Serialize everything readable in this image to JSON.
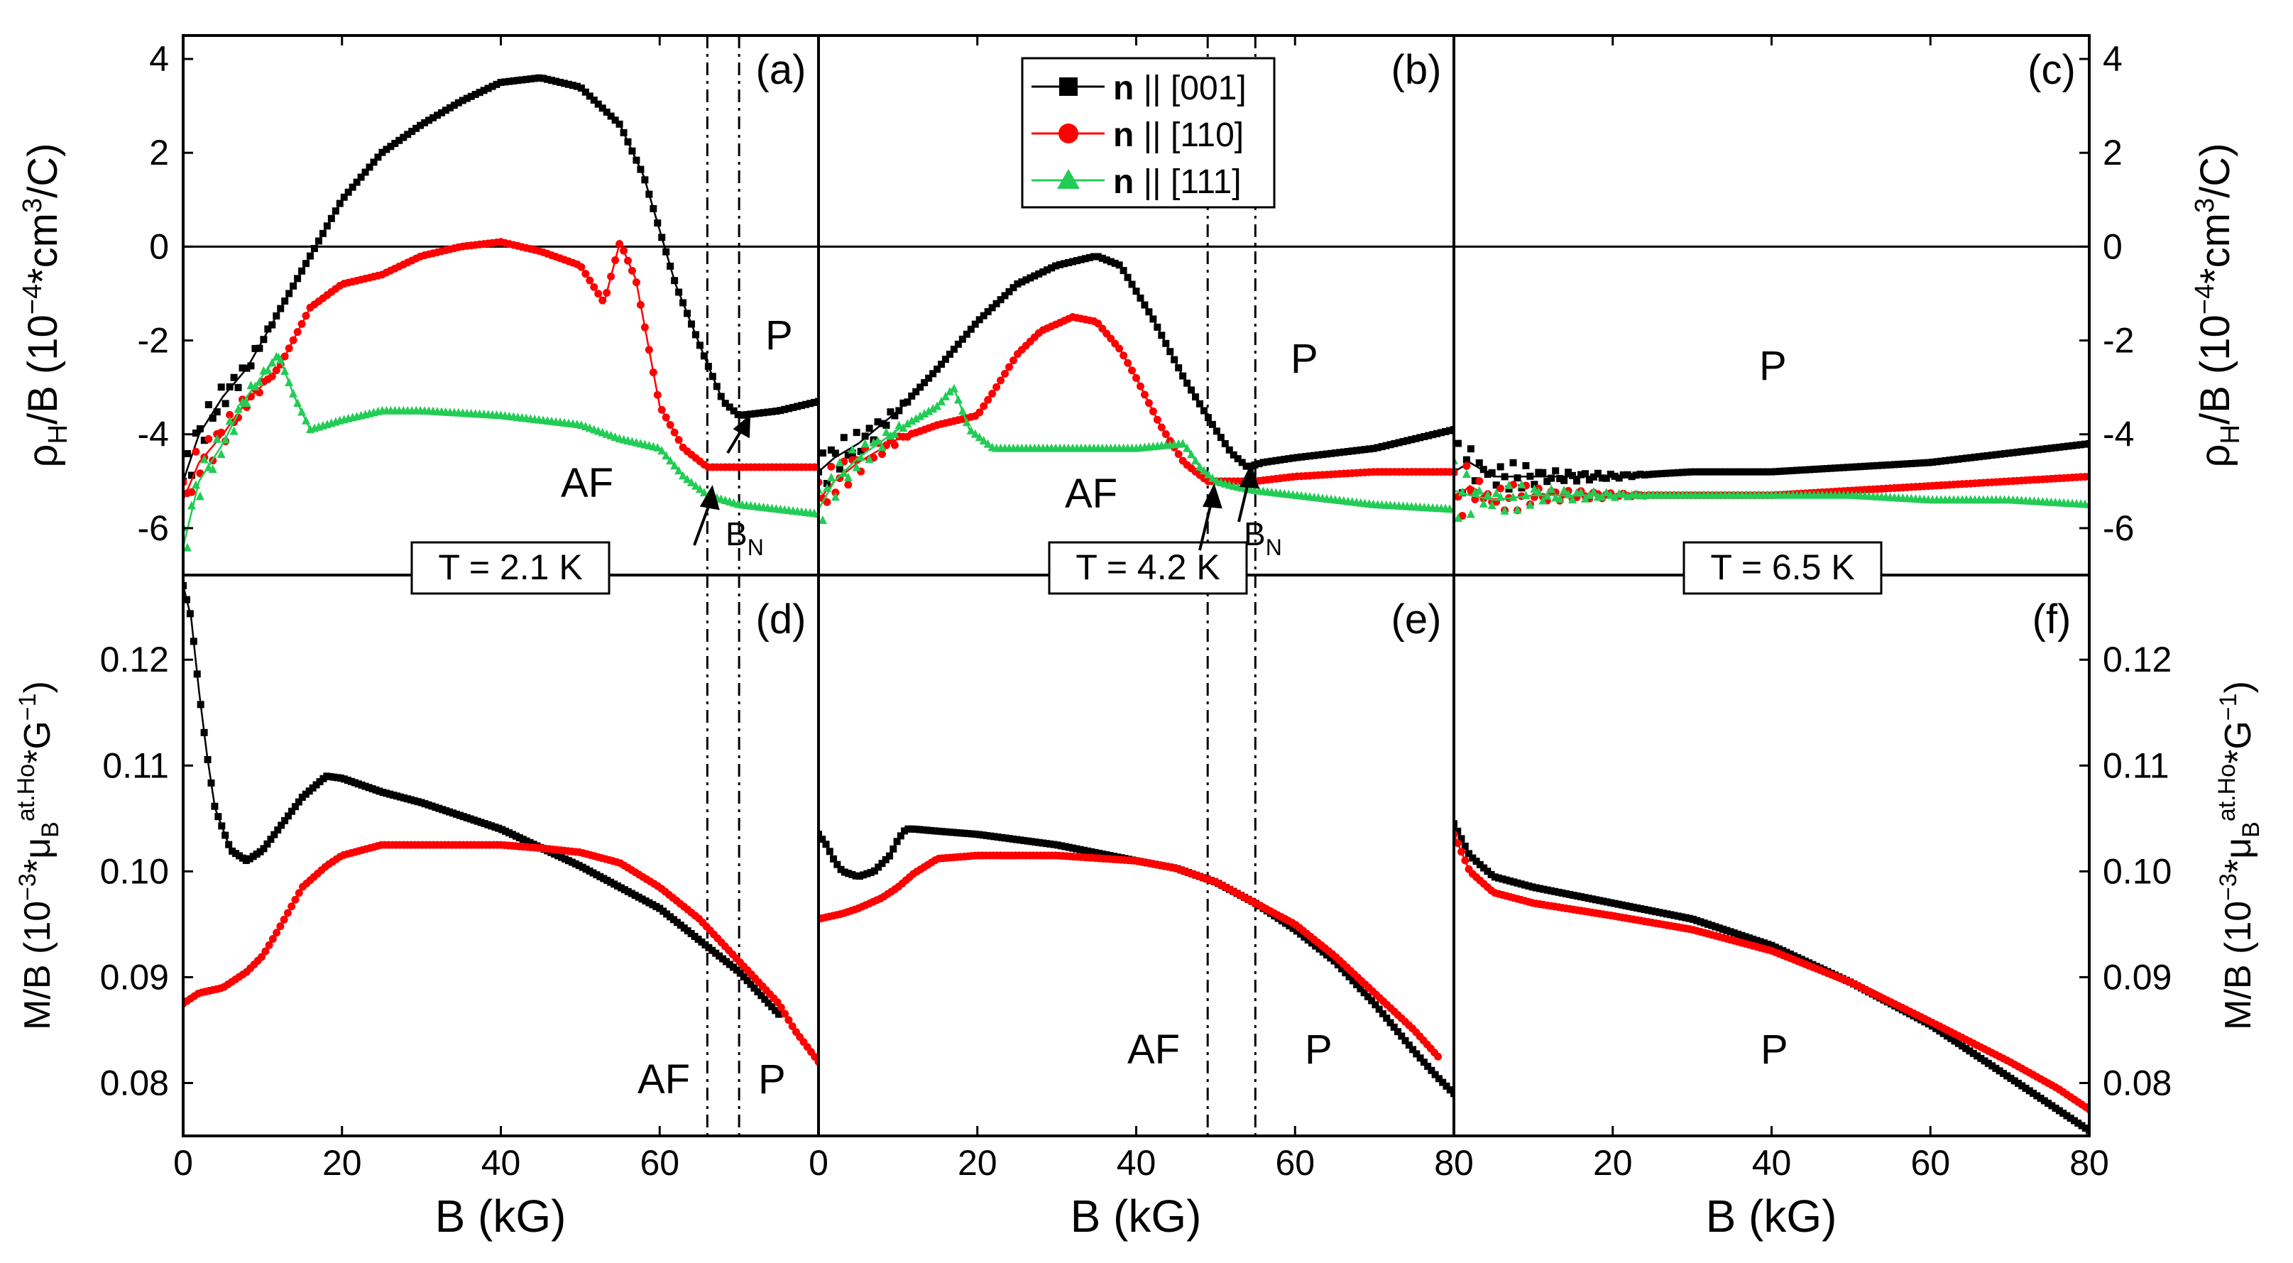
{
  "figure": {
    "panels": [
      "(a)",
      "(b)",
      "(c)",
      "(d)",
      "(e)",
      "(f)"
    ],
    "xlabel": "B (kG)",
    "top_ylabel": {
      "main": "ρ",
      "sub": "H",
      "rest": "/B (10",
      "sup": "−4",
      "tail": "*cm",
      "sup2": "3",
      "end": "/C)"
    },
    "bottom_ylabel": {
      "main": "M/B (10",
      "sup": "−3",
      "mid": "*μ",
      "sub": "B",
      "sup2": "at.Ho",
      "tail": "*G",
      "sup3": "−1",
      "end": ")"
    },
    "temperatures": [
      "T = 2.1 K",
      "T = 4.2 K",
      "T = 6.5 K"
    ],
    "region_labels": {
      "af": "AF",
      "p": "P",
      "bn": "B",
      "bn_sub": "N"
    },
    "legend": [
      {
        "bold": "n",
        "rest": " || [001]",
        "color": "#000000",
        "marker": "square"
      },
      {
        "bold": "n",
        "rest": " || [110]",
        "color": "#ff0000",
        "marker": "circle"
      },
      {
        "bold": "n",
        "rest": " || [111]",
        "color": "#22cc55",
        "marker": "triangle"
      }
    ]
  },
  "chart_data": [
    {
      "type": "line",
      "panel": "(a)",
      "title": "T = 2.1 K",
      "ylabel": "ρH/B (10^-4 cm^3/C)",
      "xlim": [
        0,
        80
      ],
      "ylim": [
        -7,
        4.5
      ],
      "yticks": [
        -6,
        -4,
        -2,
        0,
        2,
        4
      ],
      "xticks": [
        0,
        20,
        40,
        60,
        80
      ],
      "annotations": [
        "AF",
        "P",
        "BN"
      ],
      "vlines": [
        66,
        70
      ],
      "series": [
        {
          "name": "n || [001]",
          "x": [
            0,
            2,
            5,
            8,
            12,
            16,
            20,
            25,
            30,
            35,
            40,
            45,
            50,
            55,
            58,
            62,
            66,
            68,
            70,
            75,
            80
          ],
          "y": [
            -5,
            -4,
            -3.2,
            -2.6,
            -1.4,
            -0.2,
            1,
            2,
            2.6,
            3.1,
            3.5,
            3.6,
            3.4,
            2.6,
            1.5,
            -0.8,
            -2.5,
            -3.3,
            -3.6,
            -3.5,
            -3.3
          ]
        },
        {
          "name": "n || [110]",
          "x": [
            0,
            2,
            5,
            8,
            12,
            16,
            20,
            25,
            30,
            35,
            40,
            45,
            50,
            53,
            55,
            57,
            60,
            63,
            66,
            70,
            75,
            80
          ],
          "y": [
            -5.4,
            -4.6,
            -4,
            -3.3,
            -2.6,
            -1.3,
            -0.8,
            -0.6,
            -0.2,
            0,
            0.1,
            -0.1,
            -0.4,
            -1.2,
            0.1,
            -0.7,
            -3.4,
            -4.3,
            -4.7,
            -4.7,
            -4.7,
            -4.7
          ]
        },
        {
          "name": "n || [111]",
          "x": [
            0,
            2,
            5,
            8,
            12,
            14,
            16,
            20,
            25,
            30,
            40,
            50,
            55,
            60,
            63,
            66,
            70,
            75,
            80
          ],
          "y": [
            -6.4,
            -5,
            -4.2,
            -3.2,
            -2.3,
            -3.2,
            -3.9,
            -3.7,
            -3.5,
            -3.5,
            -3.6,
            -3.8,
            -4.1,
            -4.3,
            -4.9,
            -5.3,
            -5.5,
            -5.6,
            -5.7
          ]
        }
      ]
    },
    {
      "type": "line",
      "panel": "(b)",
      "title": "T = 4.2 K",
      "xlim": [
        0,
        80
      ],
      "ylim": [
        -7,
        4.5
      ],
      "annotations": [
        "AF",
        "P",
        "BN"
      ],
      "vlines": [
        49,
        55
      ],
      "series": [
        {
          "name": "n || [001]",
          "x": [
            0,
            2,
            5,
            10,
            15,
            20,
            25,
            30,
            35,
            38,
            42,
            46,
            50,
            52,
            54,
            56,
            60,
            70,
            80
          ],
          "y": [
            -4.8,
            -4.5,
            -4.2,
            -3.5,
            -2.6,
            -1.6,
            -0.8,
            -0.4,
            -0.2,
            -0.4,
            -1.5,
            -2.8,
            -3.9,
            -4.4,
            -4.7,
            -4.6,
            -4.5,
            -4.3,
            -3.9
          ]
        },
        {
          "name": "n || [110]",
          "x": [
            0,
            2,
            5,
            10,
            15,
            20,
            22,
            25,
            28,
            32,
            35,
            38,
            40,
            43,
            46,
            49,
            52,
            55,
            60,
            70,
            80
          ],
          "y": [
            -5.4,
            -5,
            -4.6,
            -4.1,
            -3.8,
            -3.6,
            -3.1,
            -2.3,
            -1.8,
            -1.5,
            -1.6,
            -2.2,
            -2.8,
            -3.8,
            -4.6,
            -5,
            -5,
            -5,
            -4.9,
            -4.8,
            -4.8
          ]
        },
        {
          "name": "n || [111]",
          "x": [
            0,
            2,
            5,
            10,
            15,
            17,
            19,
            22,
            25,
            30,
            40,
            46,
            48,
            50,
            52,
            55,
            60,
            70,
            80
          ],
          "y": [
            -5.6,
            -5,
            -4.5,
            -3.9,
            -3.4,
            -3,
            -3.9,
            -4.3,
            -4.3,
            -4.3,
            -4.3,
            -4.2,
            -4.7,
            -5,
            -5.1,
            -5.2,
            -5.3,
            -5.5,
            -5.6
          ]
        }
      ]
    },
    {
      "type": "line",
      "panel": "(c)",
      "title": "T = 6.5 K",
      "xlim": [
        0,
        80
      ],
      "ylim": [
        -7,
        4.5
      ],
      "annotations": [
        "P"
      ],
      "series": [
        {
          "name": "n || [001]",
          "x": [
            0,
            2,
            5,
            10,
            20,
            30,
            40,
            50,
            60,
            70,
            80
          ],
          "y": [
            -4.8,
            -4.6,
            -4.9,
            -4.9,
            -4.9,
            -4.8,
            -4.8,
            -4.7,
            -4.6,
            -4.4,
            -4.2
          ]
        },
        {
          "name": "n || [110]",
          "x": [
            0,
            2,
            5,
            10,
            20,
            30,
            40,
            50,
            60,
            70,
            80
          ],
          "y": [
            -5.4,
            -5.1,
            -5.4,
            -5.3,
            -5.3,
            -5.3,
            -5.3,
            -5.2,
            -5.1,
            -5,
            -4.9
          ]
        },
        {
          "name": "n || [111]",
          "x": [
            0,
            2,
            5,
            10,
            20,
            30,
            40,
            50,
            60,
            70,
            80
          ],
          "y": [
            -5.2,
            -5.3,
            -5.4,
            -5.3,
            -5.3,
            -5.3,
            -5.3,
            -5.3,
            -5.4,
            -5.4,
            -5.5
          ]
        }
      ]
    },
    {
      "type": "line",
      "panel": "(d)",
      "xlabel": "B (kG)",
      "ylabel": "M/B (10^-3 μB^at.Ho G^-1)",
      "xlim": [
        0,
        80
      ],
      "ylim": [
        0.075,
        0.128
      ],
      "yticks": [
        0.08,
        0.09,
        0.1,
        0.11,
        0.12
      ],
      "xticks": [
        0,
        20,
        40,
        60,
        80
      ],
      "annotations": [
        "AF",
        "P"
      ],
      "vlines": [
        66,
        70
      ],
      "series": [
        {
          "name": "n || [001]",
          "x": [
            0,
            1,
            2,
            3,
            4,
            6,
            8,
            10,
            12,
            15,
            18,
            20,
            25,
            30,
            40,
            50,
            55,
            60,
            65,
            70,
            75
          ],
          "y": [
            0.127,
            0.124,
            0.117,
            0.111,
            0.106,
            0.102,
            0.101,
            0.102,
            0.104,
            0.107,
            0.109,
            0.1088,
            0.1075,
            0.1065,
            0.104,
            0.1005,
            0.0985,
            0.0965,
            0.0935,
            0.0905,
            0.0865
          ]
        },
        {
          "name": "n || [110]",
          "x": [
            0,
            2,
            5,
            8,
            10,
            12,
            15,
            18,
            20,
            25,
            30,
            40,
            45,
            50,
            55,
            60,
            65,
            70,
            75,
            77,
            80
          ],
          "y": [
            0.0875,
            0.0885,
            0.089,
            0.0905,
            0.092,
            0.0945,
            0.0985,
            0.1005,
            0.1015,
            0.1025,
            0.1025,
            0.1025,
            0.1022,
            0.1018,
            0.1008,
            0.0985,
            0.0955,
            0.0915,
            0.0875,
            0.085,
            0.082
          ]
        }
      ]
    },
    {
      "type": "line",
      "panel": "(e)",
      "xlabel": "B (kG)",
      "xlim": [
        0,
        80
      ],
      "ylim": [
        0.075,
        0.128
      ],
      "annotations": [
        "AF",
        "P"
      ],
      "vlines": [
        49,
        55
      ],
      "series": [
        {
          "name": "n || [001]",
          "x": [
            0,
            1,
            2,
            3,
            5,
            7,
            9,
            10,
            11,
            12,
            15,
            20,
            30,
            40,
            45,
            50,
            55,
            60,
            65,
            70,
            75,
            78,
            80
          ],
          "y": [
            0.1035,
            0.1025,
            0.101,
            0.1,
            0.0995,
            0.1,
            0.1015,
            0.103,
            0.104,
            0.104,
            0.1038,
            0.1035,
            0.1025,
            0.101,
            0.1003,
            0.099,
            0.097,
            0.0945,
            0.0915,
            0.0875,
            0.083,
            0.0805,
            0.079
          ]
        },
        {
          "name": "n || [110]",
          "x": [
            0,
            3,
            5,
            8,
            10,
            12,
            15,
            20,
            30,
            40,
            45,
            50,
            55,
            60,
            65,
            70,
            75,
            78
          ],
          "y": [
            0.0955,
            0.096,
            0.0965,
            0.0975,
            0.0985,
            0.0998,
            0.1012,
            0.1015,
            0.1015,
            0.101,
            0.1003,
            0.099,
            0.097,
            0.095,
            0.092,
            0.0885,
            0.085,
            0.0825
          ]
        }
      ]
    },
    {
      "type": "line",
      "panel": "(f)",
      "xlabel": "B (kG)",
      "xlim": [
        0,
        80
      ],
      "ylim": [
        0.075,
        0.128
      ],
      "yticks": [
        0.08,
        0.09,
        0.1,
        0.11,
        0.12
      ],
      "annotations": [
        "P"
      ],
      "series": [
        {
          "name": "n || [001]",
          "x": [
            0,
            2,
            5,
            10,
            20,
            30,
            40,
            50,
            60,
            70,
            76,
            80
          ],
          "y": [
            0.1045,
            0.1015,
            0.0995,
            0.0985,
            0.097,
            0.0955,
            0.093,
            0.0895,
            0.0855,
            0.0805,
            0.0775,
            0.0755
          ]
        },
        {
          "name": "n || [110]",
          "x": [
            0,
            2,
            5,
            10,
            20,
            30,
            40,
            50,
            60,
            70,
            76,
            80
          ],
          "y": [
            0.1035,
            0.1,
            0.098,
            0.097,
            0.0958,
            0.0945,
            0.0925,
            0.0895,
            0.0858,
            0.082,
            0.0795,
            0.0775
          ]
        }
      ]
    }
  ]
}
